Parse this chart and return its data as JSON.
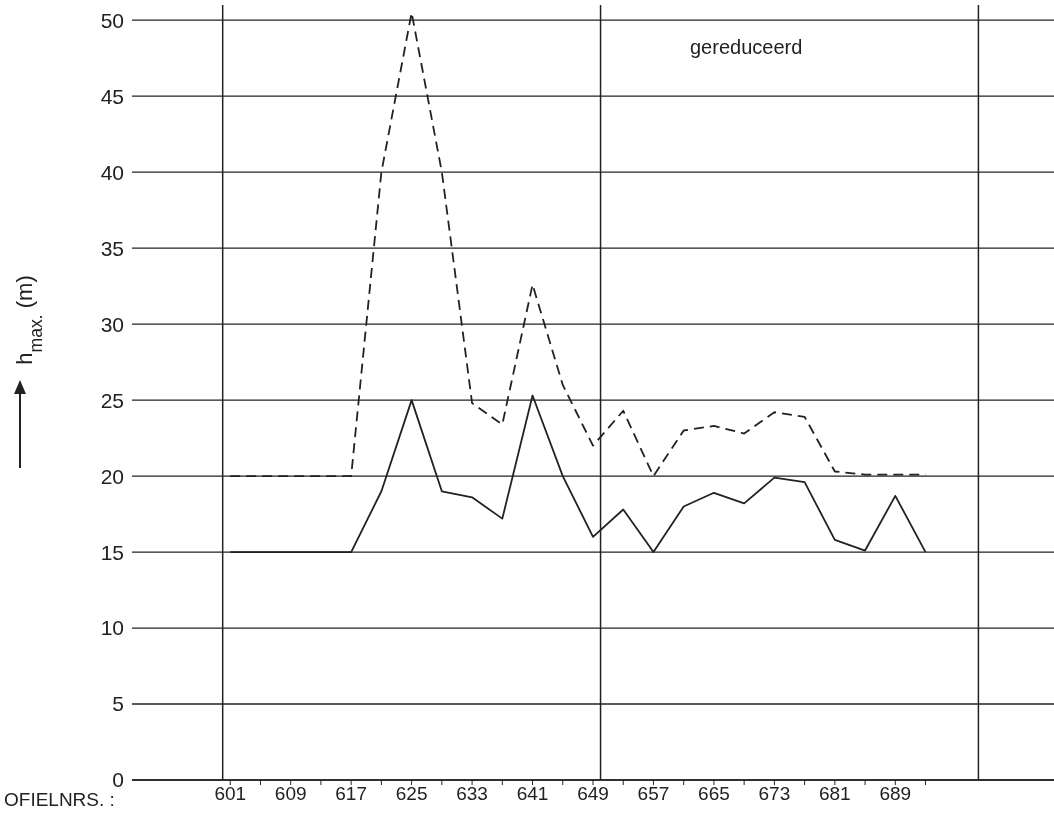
{
  "chart_data": {
    "type": "line",
    "xlabel": "OFIELNRS. :",
    "ylabel": "h$_{max.}$ (m)",
    "annotations": [
      "gereduceerd"
    ],
    "x": [
      601,
      605,
      609,
      613,
      617,
      621,
      625,
      629,
      633,
      637,
      641,
      645,
      649,
      653,
      657,
      661,
      665,
      669,
      673,
      677,
      681,
      685,
      689,
      693
    ],
    "xlim": [
      588,
      710
    ],
    "xticks": [
      601,
      {
        "value": 605,
        "label": null
      },
      609,
      {
        "value": 613,
        "label": null
      },
      617,
      {
        "value": 621,
        "label": null
      },
      625,
      {
        "value": 629,
        "label": null
      },
      633,
      {
        "value": 637,
        "label": null
      },
      641,
      {
        "value": 645,
        "label": null
      },
      649,
      {
        "value": 653,
        "label": null
      },
      657,
      {
        "value": 661,
        "label": null
      },
      665,
      {
        "value": 669,
        "label": null
      },
      673,
      {
        "value": 677,
        "label": null
      },
      681,
      {
        "value": 685,
        "label": null
      },
      689,
      {
        "value": 693,
        "label": null
      }
    ],
    "ylim": [
      0,
      51
    ],
    "yticks": [
      0,
      5,
      10,
      15,
      20,
      25,
      30,
      35,
      40,
      45,
      50
    ],
    "grid": "y",
    "marker": "none",
    "ref_lines": [
      {
        "axis": "x",
        "value": 600
      },
      {
        "axis": "x",
        "value": 650
      },
      {
        "axis": "x",
        "value": 700
      }
    ],
    "series": [
      {
        "color": "#222222",
        "line_style": "dashed",
        "values": [
          20,
          20,
          20,
          20,
          20,
          40,
          50.5,
          40,
          24.8,
          23.4,
          32.6,
          26,
          22,
          24.3,
          20,
          23,
          23.3,
          22.8,
          24.2,
          23.9,
          20.3,
          20.1,
          20.1,
          20.1
        ]
      },
      {
        "color": "#222222",
        "line_style": "solid",
        "values": [
          15,
          15,
          15,
          15,
          15,
          19,
          25,
          19,
          18.6,
          17.2,
          25.3,
          20,
          16,
          17.8,
          15,
          18,
          18.9,
          18.2,
          19.9,
          19.6,
          15.8,
          15.1,
          18.7,
          15
        ]
      }
    ]
  }
}
